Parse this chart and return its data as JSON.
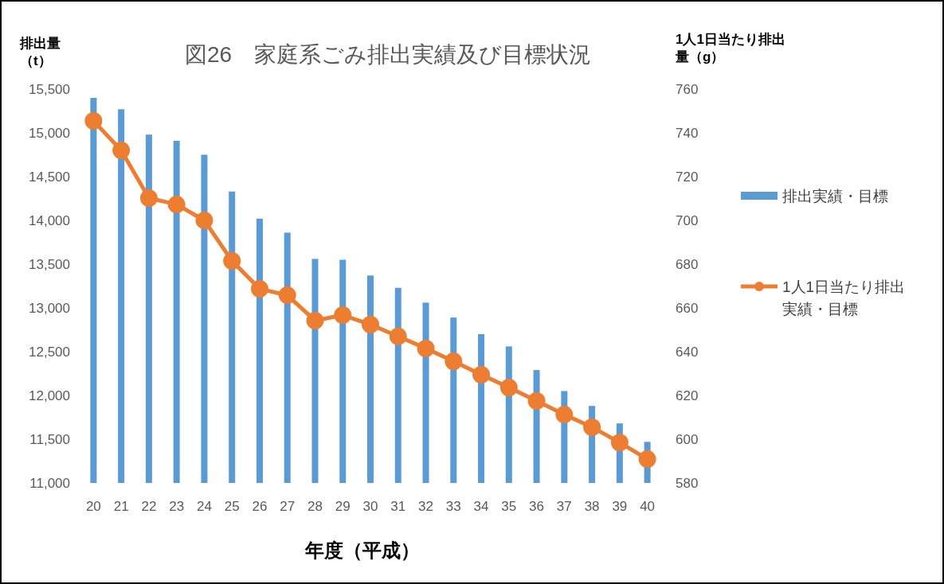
{
  "chart_data": {
    "type": "bar",
    "title": "図26　家庭系ごみ排出実績及び目標状況",
    "xlabel": "年度（平成）",
    "ylabel": "排出量（t）",
    "y2label": "1人1日当たり排出量（g）",
    "categories": [
      "20",
      "21",
      "22",
      "23",
      "24",
      "25",
      "26",
      "27",
      "28",
      "29",
      "30",
      "31",
      "32",
      "33",
      "34",
      "35",
      "36",
      "37",
      "38",
      "39",
      "40"
    ],
    "series": [
      {
        "name": "排出実績・目標",
        "color": "#5b9bd5",
        "values": [
          15400,
          15270,
          14980,
          14910,
          14750,
          14330,
          14020,
          13860,
          13560,
          13550,
          13370,
          13230,
          13060,
          12890,
          12700,
          12560,
          12290,
          12050,
          11880,
          11680,
          11470
        ]
      },
      {
        "name": "1人1日当たり排出実績・目標",
        "type": "line",
        "axis": "y2",
        "color": "#ed7d31",
        "marker": "circle",
        "line_style": "solid",
        "values": [
          745.5,
          732,
          710.2,
          707.3,
          700,
          681.5,
          668.7,
          665.8,
          654.2,
          656.7,
          652.4,
          647,
          641.5,
          635.6,
          629.5,
          623.6,
          617.5,
          611.3,
          605.5,
          598.5,
          590.9
        ]
      }
    ],
    "ylim": [
      11000,
      15500
    ],
    "yticks": [
      {
        "value": 11000,
        "label": "11,000"
      },
      {
        "value": 11500,
        "label": "11,500"
      },
      {
        "value": 12000,
        "label": "12,000"
      },
      {
        "value": 12500,
        "label": "12,500"
      },
      {
        "value": 13000,
        "label": "13,000"
      },
      {
        "value": 13500,
        "label": "13,500"
      },
      {
        "value": 14000,
        "label": "14,000"
      },
      {
        "value": 14500,
        "label": "14,500"
      },
      {
        "value": 15000,
        "label": "15,000"
      },
      {
        "value": 15500,
        "label": "15,500"
      }
    ],
    "y2lim": [
      580,
      760
    ],
    "y2ticks": [
      580,
      600,
      620,
      640,
      660,
      680,
      700,
      720,
      740,
      760
    ],
    "legend": "right",
    "grid": false
  }
}
